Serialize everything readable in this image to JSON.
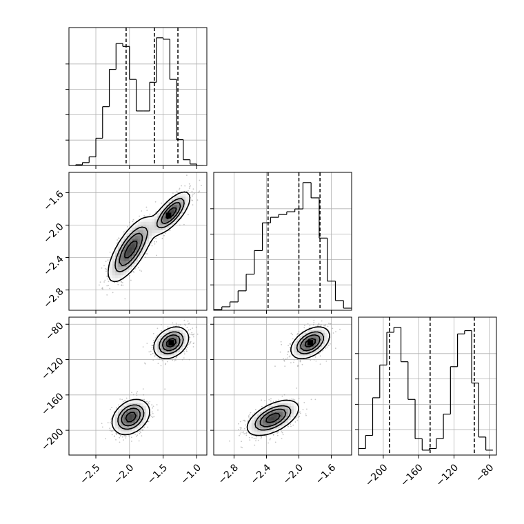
{
  "chart_data": {
    "type": "corner",
    "grid": true,
    "parameters": [
      {
        "range": [
          -2.9,
          -0.85
        ],
        "ticks": [
          -2.5,
          -2.0,
          -1.5,
          -1.0
        ],
        "tick_labels": [
          "−2.5",
          "−2.0",
          "−1.5",
          "−1.0"
        ]
      },
      {
        "range": [
          -3.05,
          -1.35
        ],
        "ticks": [
          -2.8,
          -2.4,
          -2.0,
          -1.6
        ],
        "tick_labels": [
          "−2.8",
          "−2.4",
          "−2.0",
          "−1.6"
        ]
      },
      {
        "range": [
          -228,
          -72
        ],
        "ticks": [
          -200,
          -160,
          -120,
          -80
        ],
        "tick_labels": [
          "−200",
          "−160",
          "−120",
          "−80"
        ]
      }
    ],
    "histograms": [
      {
        "param": 0,
        "bin_edges": [
          -2.9,
          -2.8,
          -2.7,
          -2.6,
          -2.5,
          -2.4,
          -2.3,
          -2.2,
          -2.1,
          -2.0,
          -1.9,
          -1.8,
          -1.7,
          -1.6,
          -1.5,
          -1.4,
          -1.3,
          -1.2,
          -1.1,
          -1.0,
          -0.9
        ],
        "counts": [
          0.0,
          0.005,
          0.02,
          0.06,
          0.19,
          0.41,
          0.67,
          0.85,
          0.83,
          0.6,
          0.38,
          0.38,
          0.58,
          0.89,
          0.88,
          0.6,
          0.18,
          0.04,
          0.01,
          0.0
        ],
        "quantiles": [
          -2.05,
          -1.63,
          -1.28
        ]
      },
      {
        "param": 1,
        "bin_edges": [
          -3.05,
          -2.95,
          -2.85,
          -2.75,
          -2.65,
          -2.55,
          -2.45,
          -2.35,
          -2.25,
          -2.15,
          -2.05,
          -1.95,
          -1.85,
          -1.75,
          -1.65,
          -1.55,
          -1.45,
          -1.35
        ],
        "counts": [
          0.005,
          0.025,
          0.06,
          0.14,
          0.26,
          0.43,
          0.63,
          0.67,
          0.69,
          0.71,
          0.73,
          0.92,
          0.81,
          0.52,
          0.21,
          0.07,
          0.015
        ],
        "quantiles": [
          -2.38,
          -2.0,
          -1.74
        ]
      },
      {
        "param": 2,
        "bin_edges": [
          -228,
          -220,
          -212,
          -204,
          -196,
          -188,
          -180,
          -172,
          -164,
          -156,
          -148,
          -140,
          -132,
          -124,
          -116,
          -108,
          -100,
          -92,
          -84,
          -76
        ],
        "counts": [
          0.04,
          0.12,
          0.35,
          0.55,
          0.75,
          0.78,
          0.57,
          0.34,
          0.1,
          0.03,
          0.04,
          0.1,
          0.25,
          0.54,
          0.74,
          0.76,
          0.44,
          0.11,
          0.03
        ],
        "quantiles": [
          -193,
          -147,
          -97
        ]
      }
    ],
    "joints": [
      {
        "x_param": 0,
        "y_param": 1,
        "modes": [
          {
            "x": -1.98,
            "y": -2.3,
            "sx": 0.17,
            "sy": 0.2,
            "rho": 0.72
          },
          {
            "x": -1.38,
            "y": -1.85,
            "sx": 0.14,
            "sy": 0.13,
            "rho": 0.72
          }
        ],
        "peak_cell": {
          "x": -1.42,
          "y": -1.88
        }
      },
      {
        "x_param": 0,
        "y_param": 2,
        "modes": [
          {
            "x": -1.98,
            "y": -185,
            "sx": 0.14,
            "sy": 10,
            "rho": 0.3
          },
          {
            "x": -1.38,
            "y": -101,
            "sx": 0.13,
            "sy": 9,
            "rho": 0.3
          }
        ],
        "peak_cell": {
          "x": -1.38,
          "y": -101
        }
      },
      {
        "x_param": 1,
        "y_param": 2,
        "modes": [
          {
            "x": -2.32,
            "y": -186,
            "sx": 0.16,
            "sy": 10,
            "rho": 0.55
          },
          {
            "x": -1.86,
            "y": -101,
            "sx": 0.12,
            "sy": 9,
            "rho": 0.45
          }
        ],
        "peak_cell": {
          "x": -1.86,
          "y": -101
        }
      }
    ]
  },
  "colors": {
    "line": "#000000",
    "grid": "#b0b0b0",
    "points": "#8c8c8c",
    "fill_dark": "#000000",
    "fill_light": "#ffffff"
  }
}
